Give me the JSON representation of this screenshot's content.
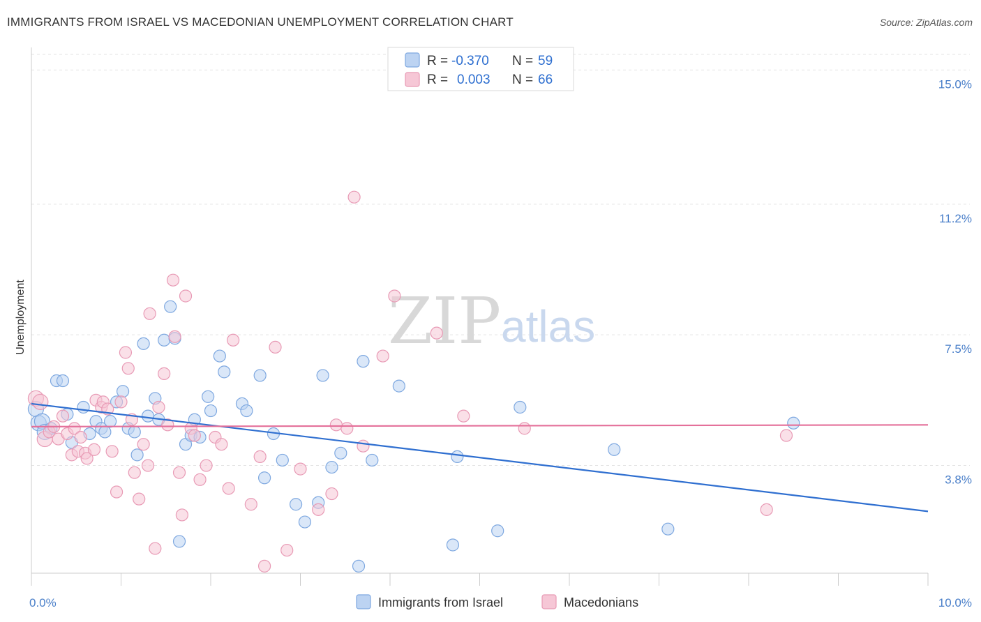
{
  "title": "IMMIGRANTS FROM ISRAEL VS MACEDONIAN UNEMPLOYMENT CORRELATION CHART",
  "source": "Source: ZipAtlas.com",
  "watermark": {
    "zip": "ZIP",
    "atlas": "atlas"
  },
  "chart_data": {
    "type": "scatter",
    "ylabel": "Unemployment",
    "xlim": [
      0,
      10
    ],
    "ylim": [
      0.75,
      15.6
    ],
    "x_tick_labels": {
      "min": "0.0%",
      "max": "10.0%"
    },
    "x_minor_ticks": [
      0,
      1,
      2,
      3,
      4,
      5,
      6,
      7,
      8,
      9,
      10
    ],
    "y_ticks": [
      {
        "value": 3.8,
        "label": "3.8%"
      },
      {
        "value": 7.5,
        "label": "7.5%"
      },
      {
        "value": 11.2,
        "label": "11.2%"
      },
      {
        "value": 15.0,
        "label": "15.0%"
      }
    ],
    "grid": true,
    "legend": {
      "position": "top-center",
      "rows": [
        {
          "r_label": "R = ",
          "r_value": "-0.370",
          "n_label": "N = ",
          "n_value": "59"
        },
        {
          "r_label": "R = ",
          "r_value": "0.003",
          "n_label": "N = ",
          "n_value": "66"
        }
      ]
    },
    "series": [
      {
        "name": "Immigrants from Israel",
        "color": "#7ea8e0",
        "fill": "#bcd3f2",
        "line_color": "#2f6fd0",
        "trend": {
          "x": [
            0,
            10
          ],
          "y": [
            5.55,
            2.5
          ]
        },
        "points": [
          [
            0.05,
            5.4
          ],
          [
            0.08,
            5.0
          ],
          [
            0.12,
            5.05
          ],
          [
            0.15,
            4.75
          ],
          [
            0.22,
            4.85
          ],
          [
            0.28,
            6.2
          ],
          [
            0.35,
            6.2
          ],
          [
            0.4,
            5.25
          ],
          [
            0.45,
            4.45
          ],
          [
            0.58,
            5.45
          ],
          [
            0.65,
            4.7
          ],
          [
            0.72,
            5.05
          ],
          [
            0.78,
            4.85
          ],
          [
            0.82,
            4.75
          ],
          [
            0.88,
            5.05
          ],
          [
            0.95,
            5.6
          ],
          [
            1.02,
            5.9
          ],
          [
            1.08,
            4.85
          ],
          [
            1.15,
            4.75
          ],
          [
            1.18,
            4.1
          ],
          [
            1.25,
            7.25
          ],
          [
            1.3,
            5.2
          ],
          [
            1.38,
            5.7
          ],
          [
            1.42,
            5.1
          ],
          [
            1.48,
            7.35
          ],
          [
            1.55,
            8.3
          ],
          [
            1.6,
            7.4
          ],
          [
            1.65,
            1.65
          ],
          [
            1.72,
            4.4
          ],
          [
            1.78,
            4.65
          ],
          [
            1.82,
            5.1
          ],
          [
            1.88,
            4.6
          ],
          [
            1.97,
            5.75
          ],
          [
            2.0,
            5.35
          ],
          [
            2.1,
            6.9
          ],
          [
            2.15,
            6.45
          ],
          [
            2.35,
            5.55
          ],
          [
            2.4,
            5.35
          ],
          [
            2.55,
            6.35
          ],
          [
            2.6,
            3.45
          ],
          [
            2.7,
            4.7
          ],
          [
            2.8,
            3.95
          ],
          [
            2.95,
            2.7
          ],
          [
            3.05,
            2.2
          ],
          [
            3.2,
            2.75
          ],
          [
            3.25,
            6.35
          ],
          [
            3.35,
            3.75
          ],
          [
            3.45,
            4.15
          ],
          [
            3.65,
            0.95
          ],
          [
            3.7,
            6.75
          ],
          [
            3.8,
            3.95
          ],
          [
            4.1,
            6.05
          ],
          [
            4.7,
            1.55
          ],
          [
            4.75,
            4.05
          ],
          [
            5.2,
            1.95
          ],
          [
            5.45,
            5.45
          ],
          [
            6.5,
            4.25
          ],
          [
            7.1,
            2.0
          ],
          [
            8.5,
            5.0
          ]
        ]
      },
      {
        "name": "Macedonians",
        "color": "#e89ab5",
        "fill": "#f6c7d6",
        "line_color": "#e4709a",
        "trend": {
          "x": [
            0,
            10
          ],
          "y": [
            4.9,
            4.95
          ]
        },
        "points": [
          [
            0.05,
            5.7
          ],
          [
            0.1,
            5.6
          ],
          [
            0.15,
            4.55
          ],
          [
            0.2,
            4.75
          ],
          [
            0.25,
            4.9
          ],
          [
            0.3,
            4.55
          ],
          [
            0.35,
            5.2
          ],
          [
            0.4,
            4.7
          ],
          [
            0.45,
            4.1
          ],
          [
            0.48,
            4.85
          ],
          [
            0.52,
            4.2
          ],
          [
            0.55,
            4.6
          ],
          [
            0.6,
            4.15
          ],
          [
            0.62,
            4.0
          ],
          [
            0.7,
            4.25
          ],
          [
            0.72,
            5.65
          ],
          [
            0.78,
            5.45
          ],
          [
            0.8,
            5.6
          ],
          [
            0.85,
            5.4
          ],
          [
            0.9,
            4.2
          ],
          [
            0.95,
            3.05
          ],
          [
            1.0,
            5.6
          ],
          [
            1.05,
            7.0
          ],
          [
            1.08,
            6.55
          ],
          [
            1.12,
            5.1
          ],
          [
            1.15,
            3.6
          ],
          [
            1.2,
            2.85
          ],
          [
            1.25,
            4.4
          ],
          [
            1.3,
            3.8
          ],
          [
            1.32,
            8.1
          ],
          [
            1.38,
            1.45
          ],
          [
            1.42,
            5.45
          ],
          [
            1.48,
            6.4
          ],
          [
            1.52,
            4.95
          ],
          [
            1.58,
            9.05
          ],
          [
            1.6,
            7.45
          ],
          [
            1.65,
            3.6
          ],
          [
            1.68,
            2.4
          ],
          [
            1.72,
            8.6
          ],
          [
            1.78,
            4.85
          ],
          [
            1.82,
            4.65
          ],
          [
            1.88,
            3.4
          ],
          [
            1.95,
            3.8
          ],
          [
            2.05,
            4.6
          ],
          [
            2.12,
            4.4
          ],
          [
            2.2,
            3.15
          ],
          [
            2.25,
            7.35
          ],
          [
            2.45,
            2.7
          ],
          [
            2.55,
            4.05
          ],
          [
            2.6,
            0.95
          ],
          [
            2.72,
            7.15
          ],
          [
            2.85,
            1.4
          ],
          [
            3.0,
            3.7
          ],
          [
            3.2,
            2.55
          ],
          [
            3.35,
            3.0
          ],
          [
            3.4,
            4.95
          ],
          [
            3.52,
            4.85
          ],
          [
            3.6,
            11.4
          ],
          [
            3.7,
            4.35
          ],
          [
            3.92,
            6.9
          ],
          [
            4.05,
            8.6
          ],
          [
            4.52,
            7.55
          ],
          [
            4.82,
            5.2
          ],
          [
            8.2,
            2.55
          ],
          [
            8.42,
            4.65
          ],
          [
            5.5,
            4.85
          ]
        ]
      }
    ]
  }
}
